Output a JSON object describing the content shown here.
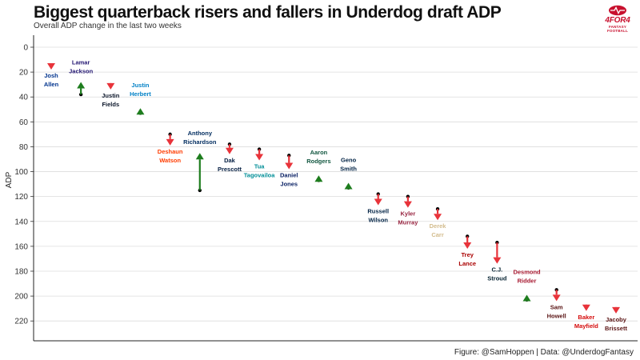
{
  "header": {
    "title": "Biggest quarterback risers and fallers in Underdog draft ADP",
    "subtitle": "Overall ADP change in the last two weeks"
  },
  "logo": {
    "wordmark": "4FOR4",
    "tagline": "FANTASY FOOTBALL",
    "color": "#c8102e"
  },
  "caption": "Figure: @SamHoppen | Data: @UnderdogFantasy",
  "chart_data": {
    "type": "arrow",
    "ylabel": "ADP",
    "xlabel": "",
    "ylim": [
      0,
      235
    ],
    "y_inverted": true,
    "yticks": [
      0,
      20,
      40,
      60,
      80,
      100,
      120,
      140,
      160,
      180,
      200,
      220
    ],
    "grid": true,
    "colors": {
      "riser": "#1e7d1e",
      "faller": "#e8333a",
      "grid": "#dcdcdc"
    },
    "players": [
      {
        "name": [
          "Josh",
          "Allen"
        ],
        "from": 15,
        "to": 18,
        "color": "#00338d"
      },
      {
        "name": [
          "Lamar",
          "Jackson"
        ],
        "from": 38,
        "to": 28,
        "color": "#241773"
      },
      {
        "name": [
          "Justin",
          "Fields"
        ],
        "from": 31,
        "to": 34,
        "color": "#0b162a"
      },
      {
        "name": [
          "Justin",
          "Herbert"
        ],
        "from": 53,
        "to": 49,
        "color": "#0080c6"
      },
      {
        "name": [
          "Deshaun",
          "Watson"
        ],
        "from": 70,
        "to": 79,
        "color": "#ff3c00"
      },
      {
        "name": [
          "Anthony",
          "Richardson"
        ],
        "from": 115,
        "to": 85,
        "color": "#002c5f"
      },
      {
        "name": [
          "Dak",
          "Prescott"
        ],
        "from": 78,
        "to": 86,
        "color": "#041e42"
      },
      {
        "name": [
          "Tua",
          "Tagovailoa"
        ],
        "from": 82,
        "to": 91,
        "color": "#008e97"
      },
      {
        "name": [
          "Daniel",
          "Jones"
        ],
        "from": 87,
        "to": 98,
        "color": "#0b2265"
      },
      {
        "name": [
          "Aaron",
          "Rodgers"
        ],
        "from": 107,
        "to": 103,
        "color": "#125740"
      },
      {
        "name": [
          "Geno",
          "Smith"
        ],
        "from": 113,
        "to": 109,
        "color": "#002244"
      },
      {
        "name": [
          "Russell",
          "Wilson"
        ],
        "from": 118,
        "to": 127,
        "color": "#002244"
      },
      {
        "name": [
          "Kyler",
          "Murray"
        ],
        "from": 120,
        "to": 129,
        "color": "#97233f"
      },
      {
        "name": [
          "Derek",
          "Carr"
        ],
        "from": 130,
        "to": 139,
        "color": "#d3bc8d"
      },
      {
        "name": [
          "Trey",
          "Lance"
        ],
        "from": 152,
        "to": 162,
        "color": "#aa0000"
      },
      {
        "name": [
          "C.J.",
          "Stroud"
        ],
        "from": 157,
        "to": 174,
        "color": "#03202f"
      },
      {
        "name": [
          "Desmond",
          "Ridder"
        ],
        "from": 203,
        "to": 199,
        "color": "#a71930"
      },
      {
        "name": [
          "Sam",
          "Howell"
        ],
        "from": 195,
        "to": 204,
        "color": "#5a1414"
      },
      {
        "name": [
          "Baker",
          "Mayfield"
        ],
        "from": 209,
        "to": 212,
        "color": "#d50a0a"
      },
      {
        "name": [
          "Jacoby",
          "Brissett"
        ],
        "from": 211,
        "to": 214,
        "color": "#5a1414"
      }
    ]
  }
}
